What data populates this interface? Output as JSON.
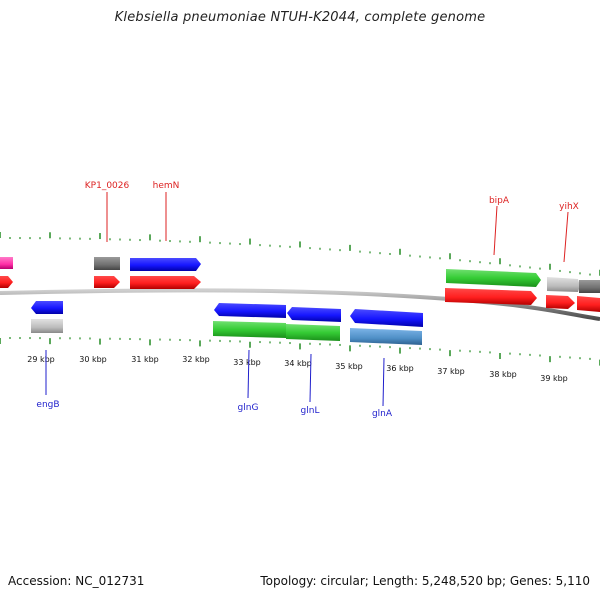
{
  "header": {
    "title": "Klebsiella pneumoniae NTUH-K2044, complete genome"
  },
  "footer": {
    "accession": "Accession: NC_012731",
    "summary": "Topology: circular; Length: 5,248,520 bp; Genes: 5,110"
  },
  "colors": {
    "forward_gene": "#ff2020",
    "reverse_gene": "#1a1aff",
    "green_feature": "#33cc33",
    "grey_feature": "#bcbcbc",
    "dark_grey_feature": "#707070",
    "magenta_feature": "#ff33aa",
    "steelblue_feature": "#4f8fc6",
    "backbone": "#777777",
    "tick": "#228b22",
    "top_label": "#dd2222",
    "bottom_label": "#1f1fcc"
  },
  "scale": {
    "labels": [
      "29 kbp",
      "30 kbp",
      "31 kbp",
      "32 kbp",
      "33 kbp",
      "34 kbp",
      "35 kbp",
      "36 kbp",
      "37 kbp",
      "38 kbp",
      "39 kbp"
    ]
  },
  "labels": {
    "top": [
      "KP1_0026",
      "hemN",
      "bipA",
      "yihX"
    ],
    "bottom": [
      "engB",
      "glnG",
      "glnL",
      "glnA"
    ]
  },
  "features": {
    "upper_outer": [
      {
        "color": "magenta"
      },
      {
        "color": "darkgrey"
      },
      {
        "color": "blue"
      },
      {
        "color": "green"
      },
      {
        "color": "lightgrey"
      },
      {
        "color": "darkgrey"
      }
    ],
    "upper_inner": [
      {
        "color": "red"
      },
      {
        "color": "red"
      },
      {
        "color": "red"
      },
      {
        "color": "red"
      },
      {
        "color": "red"
      },
      {
        "color": "red"
      }
    ],
    "lower_inner": [
      {
        "color": "blue"
      },
      {
        "color": "blue"
      },
      {
        "color": "blue"
      },
      {
        "color": "blue"
      }
    ],
    "lower_outer": [
      {
        "color": "lightgrey"
      },
      {
        "color": "green"
      },
      {
        "color": "green"
      },
      {
        "color": "steelblue"
      }
    ]
  }
}
